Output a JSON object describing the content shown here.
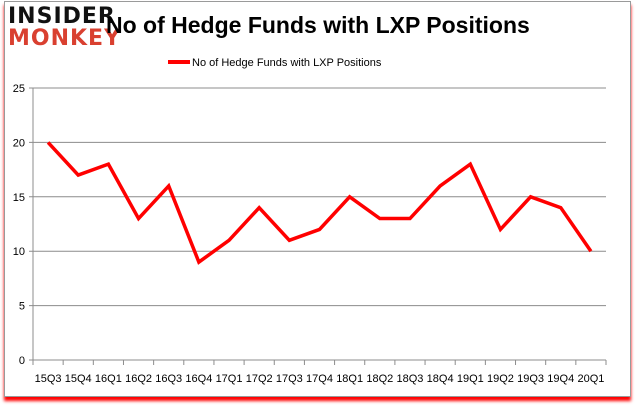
{
  "logo": {
    "line1": "INSIDER",
    "line2": "MONKEY"
  },
  "chart_data": {
    "type": "line",
    "title": "No of Hedge Funds with LXP Positions",
    "categories": [
      "15Q3",
      "15Q4",
      "16Q1",
      "16Q2",
      "16Q3",
      "16Q4",
      "17Q1",
      "17Q2",
      "17Q3",
      "17Q4",
      "18Q1",
      "18Q2",
      "18Q3",
      "18Q4",
      "19Q1",
      "19Q2",
      "19Q3",
      "19Q4",
      "20Q1"
    ],
    "series": [
      {
        "name": "No of Hedge Funds with LXP Positions",
        "values": [
          20,
          17,
          18,
          13,
          16,
          9,
          11,
          14,
          11,
          12,
          15,
          13,
          13,
          16,
          18,
          12,
          15,
          14,
          10
        ],
        "color": "#ff0000"
      }
    ],
    "xlabel": "",
    "ylabel": "",
    "ylim": [
      0,
      25
    ],
    "yticks": [
      0,
      5,
      10,
      15,
      20,
      25
    ],
    "grid": true,
    "legend": "top"
  }
}
